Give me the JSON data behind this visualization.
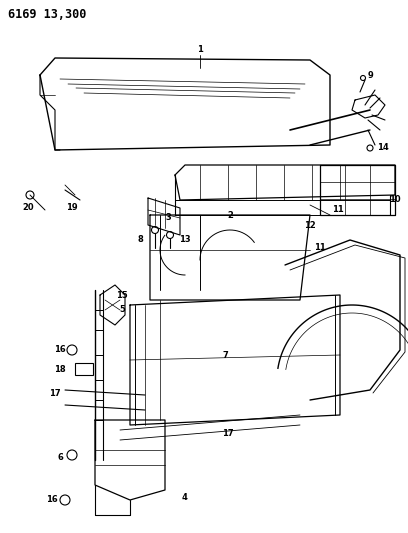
{
  "title": "6169 13,300",
  "bg_color": "#ffffff",
  "line_color": "#000000",
  "fig_width": 4.08,
  "fig_height": 5.33,
  "dpi": 100,
  "title_fontsize": 8.5,
  "title_fontweight": "bold",
  "label_fontsize": 6.0
}
